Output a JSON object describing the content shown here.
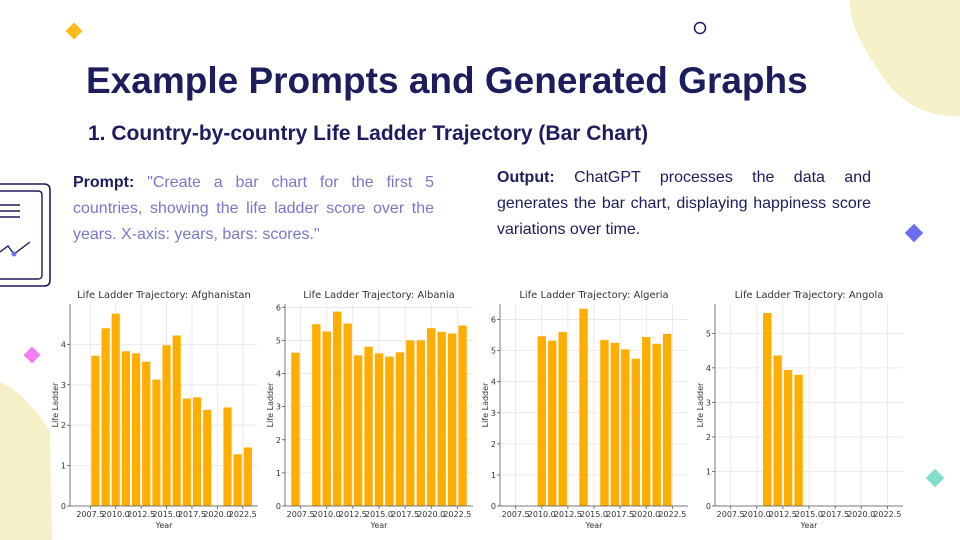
{
  "slide": {
    "title": "Example Prompts and Generated Graphs",
    "subtitle": "1. Country-by-country Life Ladder Trajectory (Bar Chart)",
    "prompt_label": "Prompt:",
    "prompt_text": "\"Create a bar chart for the first 5 countries, showing the life ladder score over the years. X-axis: years, bars: scores.\"",
    "output_label": "Output:",
    "output_text": "ChatGPT processes the data and generates the bar chart, displaying happiness score variations over time."
  },
  "colors": {
    "title": "#1d1c5c",
    "prompt_text": "#7a77c9",
    "bar": "#ffae00",
    "deco_yellow": "#f6f0c8",
    "diamond_orange": "#ffbb1c",
    "diamond_blue": "#6c6ef0",
    "diamond_pink": "#f47cf4",
    "diamond_teal": "#7ee0cc"
  },
  "chart_data": [
    {
      "type": "bar",
      "title": "Life Ladder Trajectory: Afghanistan",
      "xlabel": "Year",
      "ylabel": "Life Ladder",
      "xlim": [
        2005.5,
        2024
      ],
      "xticks": [
        "2007.5",
        "2010.0",
        "2012.5",
        "2015.0",
        "2017.5",
        "2020.0",
        "2022.5"
      ],
      "ylim": [
        0,
        5.0
      ],
      "yticks": [
        0,
        1,
        2,
        3,
        4
      ],
      "x": [
        2008,
        2009,
        2010,
        2011,
        2012,
        2013,
        2014,
        2015,
        2016,
        2017,
        2018,
        2019,
        2021,
        2022,
        2023
      ],
      "values": [
        3.72,
        4.4,
        4.76,
        3.83,
        3.78,
        3.57,
        3.13,
        3.98,
        4.22,
        2.66,
        2.69,
        2.38,
        2.44,
        1.28,
        1.45
      ]
    },
    {
      "type": "bar",
      "title": "Life Ladder Trajectory: Albania",
      "xlabel": "Year",
      "ylabel": "Life Ladder",
      "xlim": [
        2006,
        2024
      ],
      "xticks": [
        "2007.5",
        "2010.0",
        "2012.5",
        "2015.0",
        "2017.5",
        "2020.0",
        "2022.5"
      ],
      "ylim": [
        0,
        6.1
      ],
      "yticks": [
        0,
        1,
        2,
        3,
        4,
        5,
        6
      ],
      "x": [
        2007,
        2009,
        2010,
        2011,
        2012,
        2013,
        2014,
        2015,
        2016,
        2017,
        2018,
        2019,
        2020,
        2021,
        2022,
        2023
      ],
      "values": [
        4.63,
        5.49,
        5.27,
        5.87,
        5.51,
        4.55,
        4.81,
        4.61,
        4.51,
        4.64,
        5.0,
        5.0,
        5.37,
        5.26,
        5.21,
        5.45
      ]
    },
    {
      "type": "bar",
      "title": "Life Ladder Trajectory: Algeria",
      "xlabel": "Year",
      "ylabel": "Life Ladder",
      "xlim": [
        2006,
        2024
      ],
      "xticks": [
        "2007.5",
        "2010.0",
        "2012.5",
        "2015.0",
        "2017.5",
        "2020.0",
        "2022.5"
      ],
      "ylim": [
        0,
        6.5
      ],
      "yticks": [
        0,
        1,
        2,
        3,
        4,
        5,
        6
      ],
      "x": [
        2010,
        2011,
        2012,
        2014,
        2016,
        2017,
        2018,
        2019,
        2020,
        2021,
        2022
      ],
      "values": [
        5.46,
        5.32,
        5.6,
        6.35,
        5.34,
        5.25,
        5.04,
        4.74,
        5.44,
        5.22,
        5.54
      ]
    },
    {
      "type": "bar",
      "title": "Life Ladder Trajectory: Angola",
      "xlabel": "Year",
      "ylabel": "Life Ladder",
      "xlim": [
        2006,
        2024
      ],
      "xticks": [
        "2007.5",
        "2010.0",
        "2012.5",
        "2015.0",
        "2017.5",
        "2020.0",
        "2022.5"
      ],
      "ylim": [
        0,
        5.85
      ],
      "yticks": [
        0,
        1,
        2,
        3,
        4,
        5
      ],
      "x": [
        2011,
        2012,
        2013,
        2014
      ],
      "values": [
        5.59,
        4.36,
        3.94,
        3.8
      ]
    }
  ]
}
